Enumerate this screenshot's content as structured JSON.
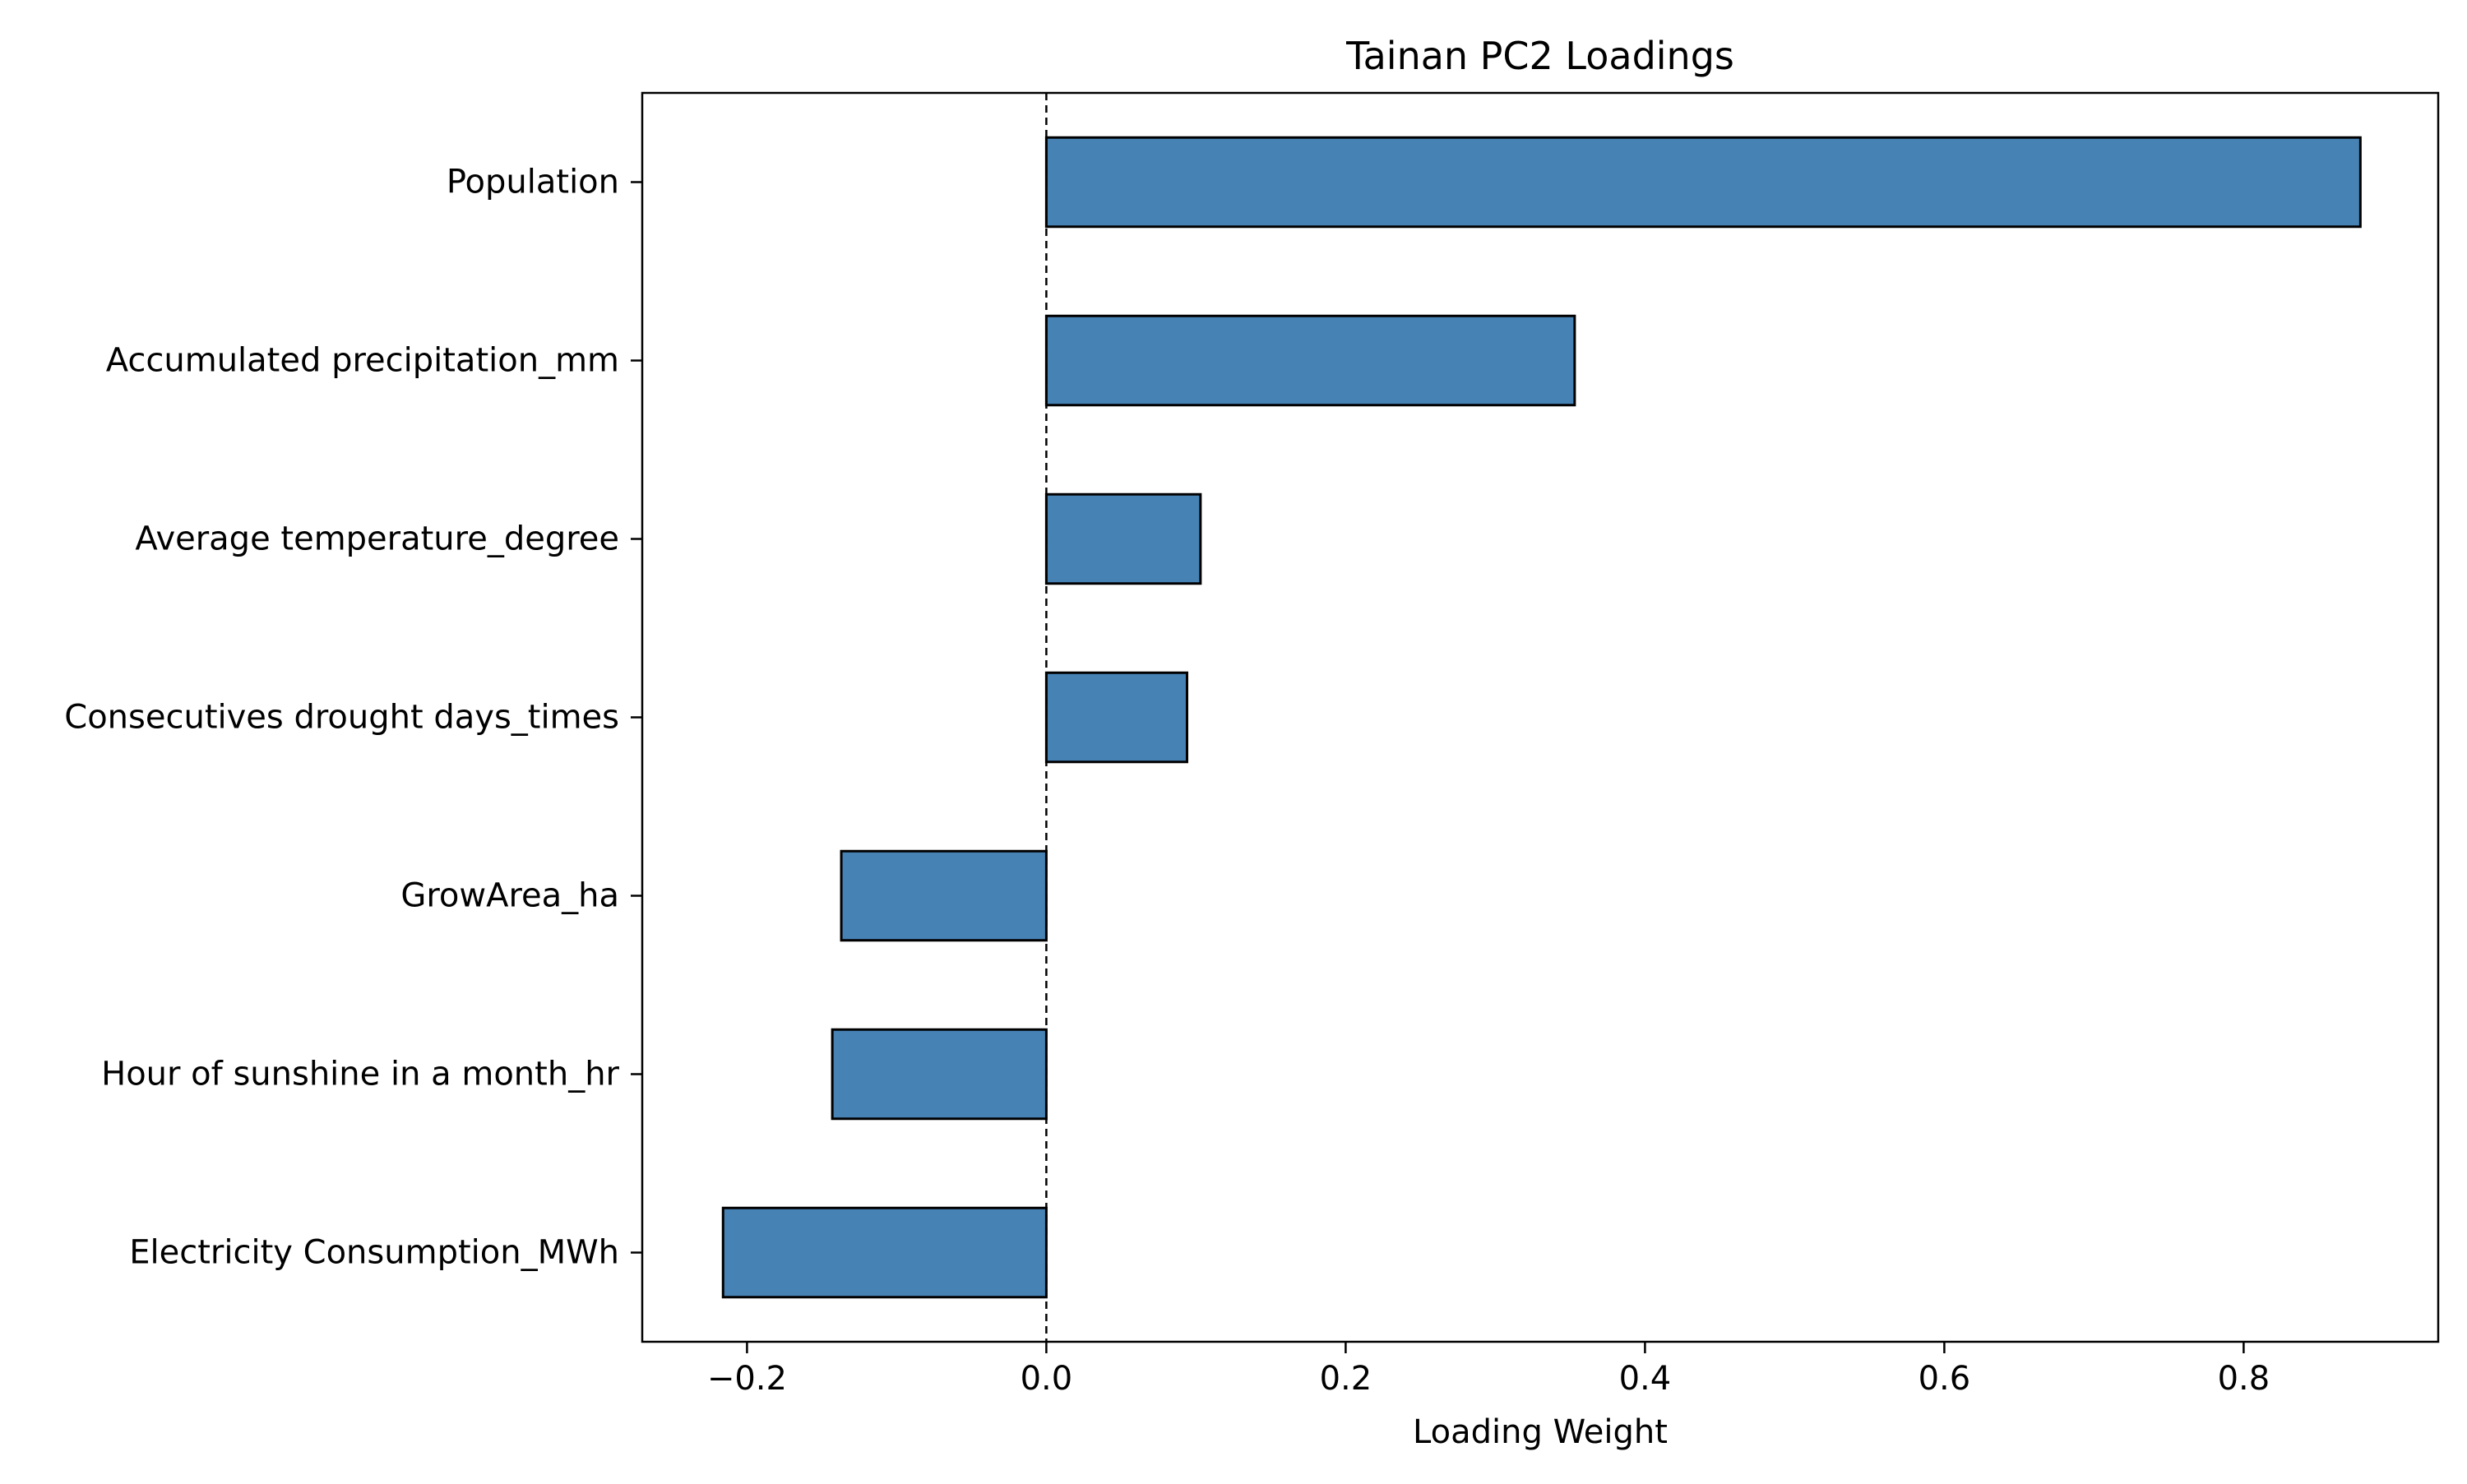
{
  "chart_data": {
    "type": "bar",
    "orientation": "horizontal",
    "title": "Tainan PC2 Loadings",
    "xlabel": "Loading Weight",
    "ylabel": "",
    "categories": [
      "Population",
      "Accumulated precipitation_mm",
      "Average temperature_degree",
      "Consecutives drought days_times",
      "GrowArea_ha",
      "Hour of sunshine in a month_hr",
      "Electricity Consumption_MWh"
    ],
    "values": [
      0.878,
      0.353,
      0.103,
      0.094,
      -0.137,
      -0.143,
      -0.216
    ],
    "xlim": [
      -0.27,
      0.93
    ],
    "xticks": [
      -0.2,
      0.0,
      0.2,
      0.4,
      0.6,
      0.8
    ],
    "xtick_labels": [
      "−0.2",
      "0.0",
      "0.2",
      "0.4",
      "0.6",
      "0.8"
    ],
    "reference_line": {
      "x": 0.0,
      "style": "dashed"
    },
    "grid": false,
    "legend": "none",
    "colors": {
      "bar_fill": "#4682b4",
      "bar_edge": "#000000",
      "axes": "#000000"
    }
  }
}
